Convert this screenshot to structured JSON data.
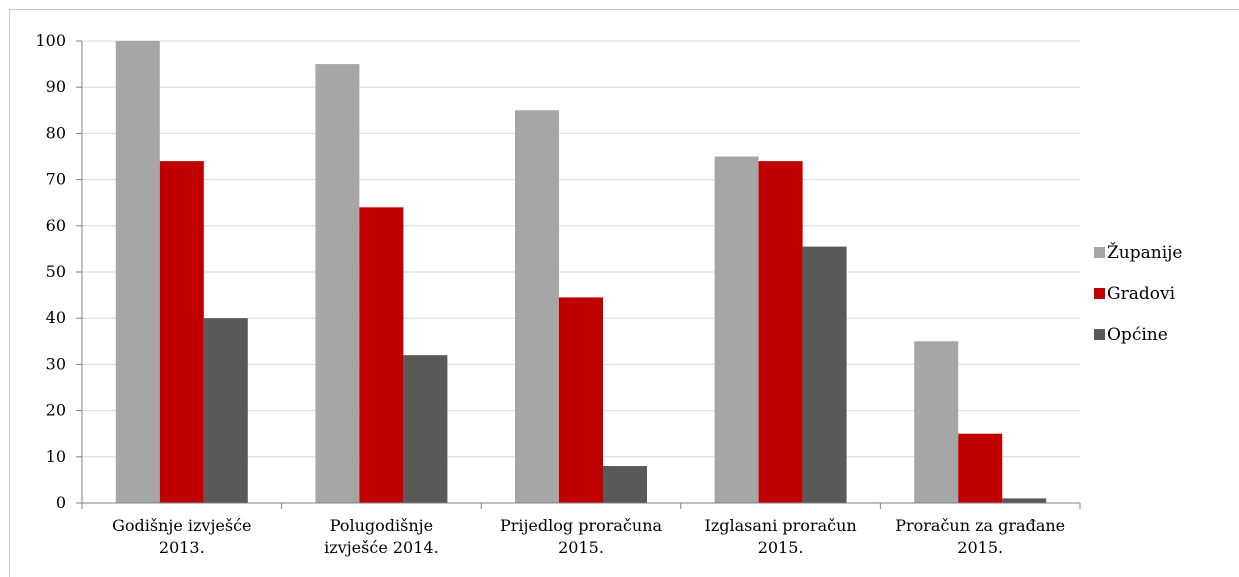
{
  "chart_data": {
    "type": "bar",
    "title": "",
    "xlabel": "",
    "ylabel": "",
    "ylim": [
      0,
      100
    ],
    "yticks": [
      "0",
      "10",
      "20",
      "30",
      "40",
      "50",
      "60",
      "70",
      "80",
      "90",
      "100"
    ],
    "categories": [
      [
        "Godišnje izvješće",
        "2013."
      ],
      [
        "Polugodišnje",
        "izvješće 2014."
      ],
      [
        "Prijedlog proračuna",
        "2015."
      ],
      [
        "Izglasani proračun",
        "2015."
      ],
      [
        "Proračun za građane",
        "2015."
      ]
    ],
    "series": [
      {
        "name": "Županije",
        "color": "#a6a6a6",
        "values": [
          100,
          95,
          85,
          75,
          35
        ]
      },
      {
        "name": "Gradovi",
        "color": "#c00000",
        "values": [
          74,
          64,
          44.5,
          74,
          15
        ]
      },
      {
        "name": "Općine",
        "color": "#595959",
        "values": [
          40,
          32,
          8,
          55.5,
          1
        ]
      }
    ],
    "grid": true,
    "legend": "right"
  }
}
